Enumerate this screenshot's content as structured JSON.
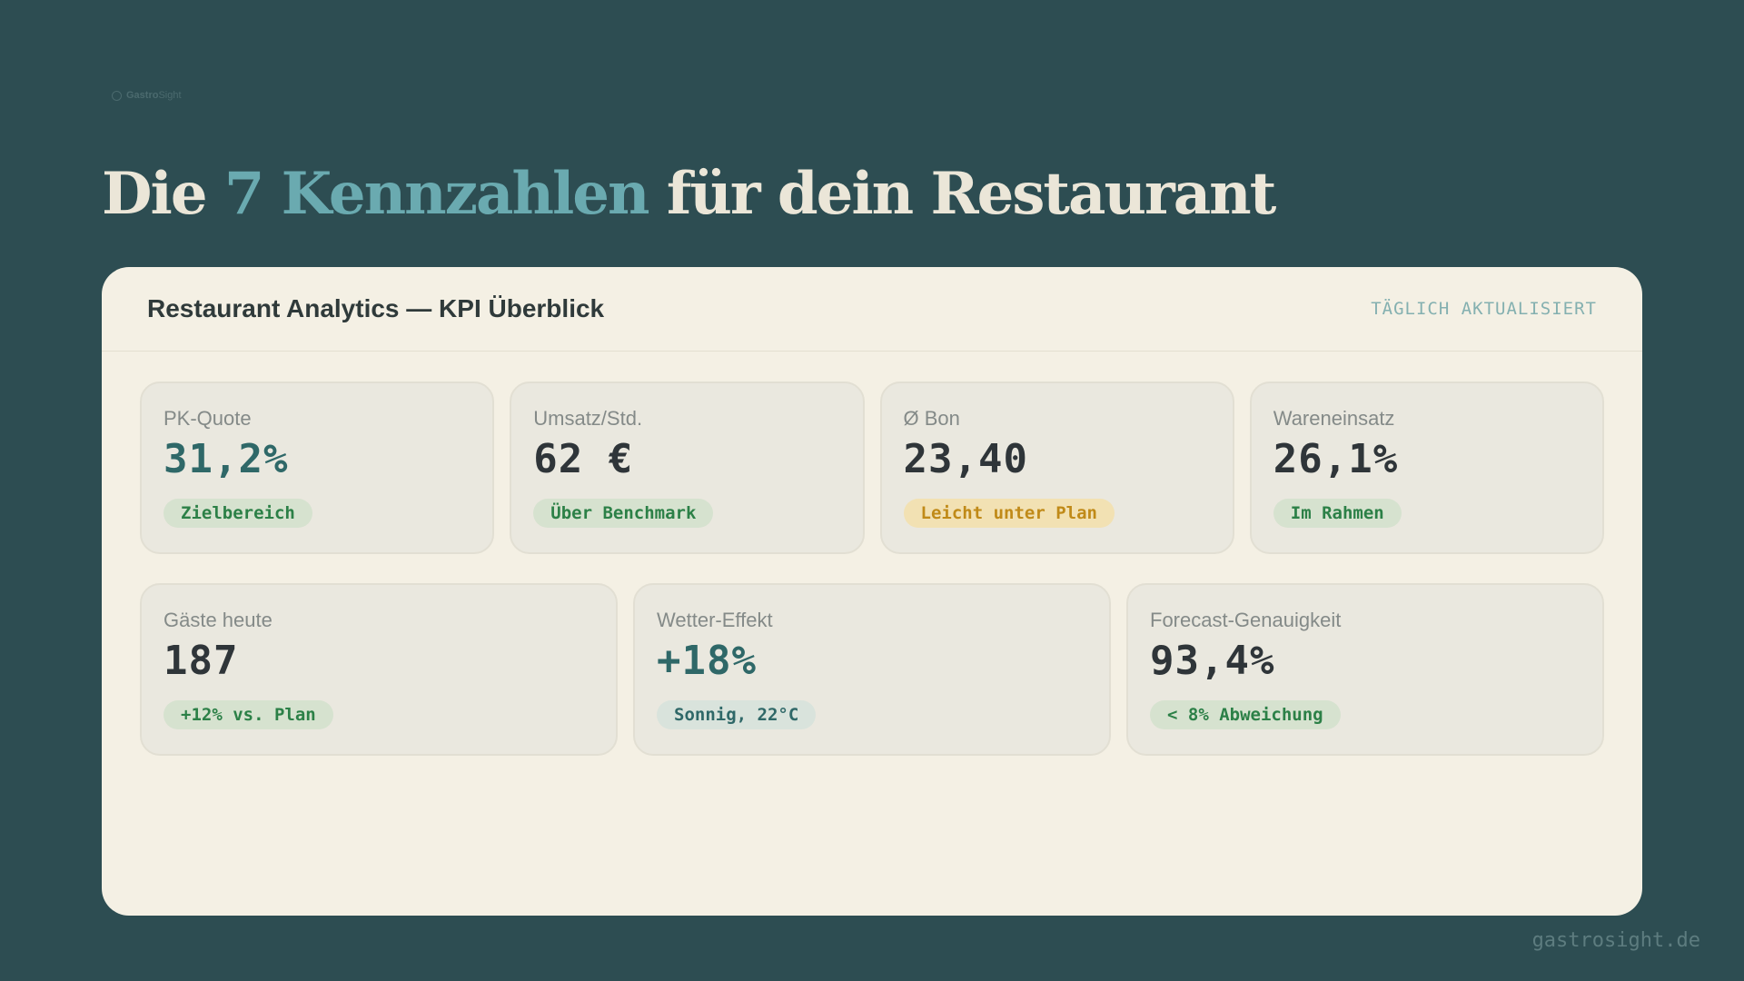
{
  "logo": {
    "bold": "Gastro",
    "light": "Sight"
  },
  "headline": {
    "prefix": "Die ",
    "accent": "7 Kennzahlen",
    "suffix": " für dein Restaurant"
  },
  "panel": {
    "title": "Restaurant Analytics — KPI Überblick",
    "badge": "TÄGLICH AKTUALISIERT"
  },
  "kpis_row1": [
    {
      "label": "PK-Quote",
      "value": "31,2%",
      "value_color": "teal",
      "status": "Zielbereich",
      "status_color": "green"
    },
    {
      "label": "Umsatz/Std.",
      "value": "62 €",
      "value_color": "dark",
      "status": "Über Benchmark",
      "status_color": "green"
    },
    {
      "label": "Ø Bon",
      "value": "23,40",
      "value_color": "dark",
      "status": "Leicht unter Plan",
      "status_color": "amber"
    },
    {
      "label": "Wareneinsatz",
      "value": "26,1%",
      "value_color": "dark",
      "status": "Im Rahmen",
      "status_color": "green"
    }
  ],
  "kpis_row2": [
    {
      "label": "Gäste heute",
      "value": "187",
      "value_color": "dark",
      "status": "+12% vs. Plan",
      "status_color": "green"
    },
    {
      "label": "Wetter-Effekt",
      "value": "+18%",
      "value_color": "teal",
      "status": "Sonnig, 22°C",
      "status_color": "teal"
    },
    {
      "label": "Forecast-Genauigkeit",
      "value": "93,4%",
      "value_color": "dark",
      "status": "< 8% Abweichung",
      "status_color": "green"
    }
  ],
  "footer": "gastrosight.de",
  "colors": {
    "background": "#2d4d52",
    "panel": "#f4f0e4",
    "accent": "#6aaab0",
    "green": "#2c8047",
    "amber": "#c08a18",
    "teal": "#2f6868"
  }
}
